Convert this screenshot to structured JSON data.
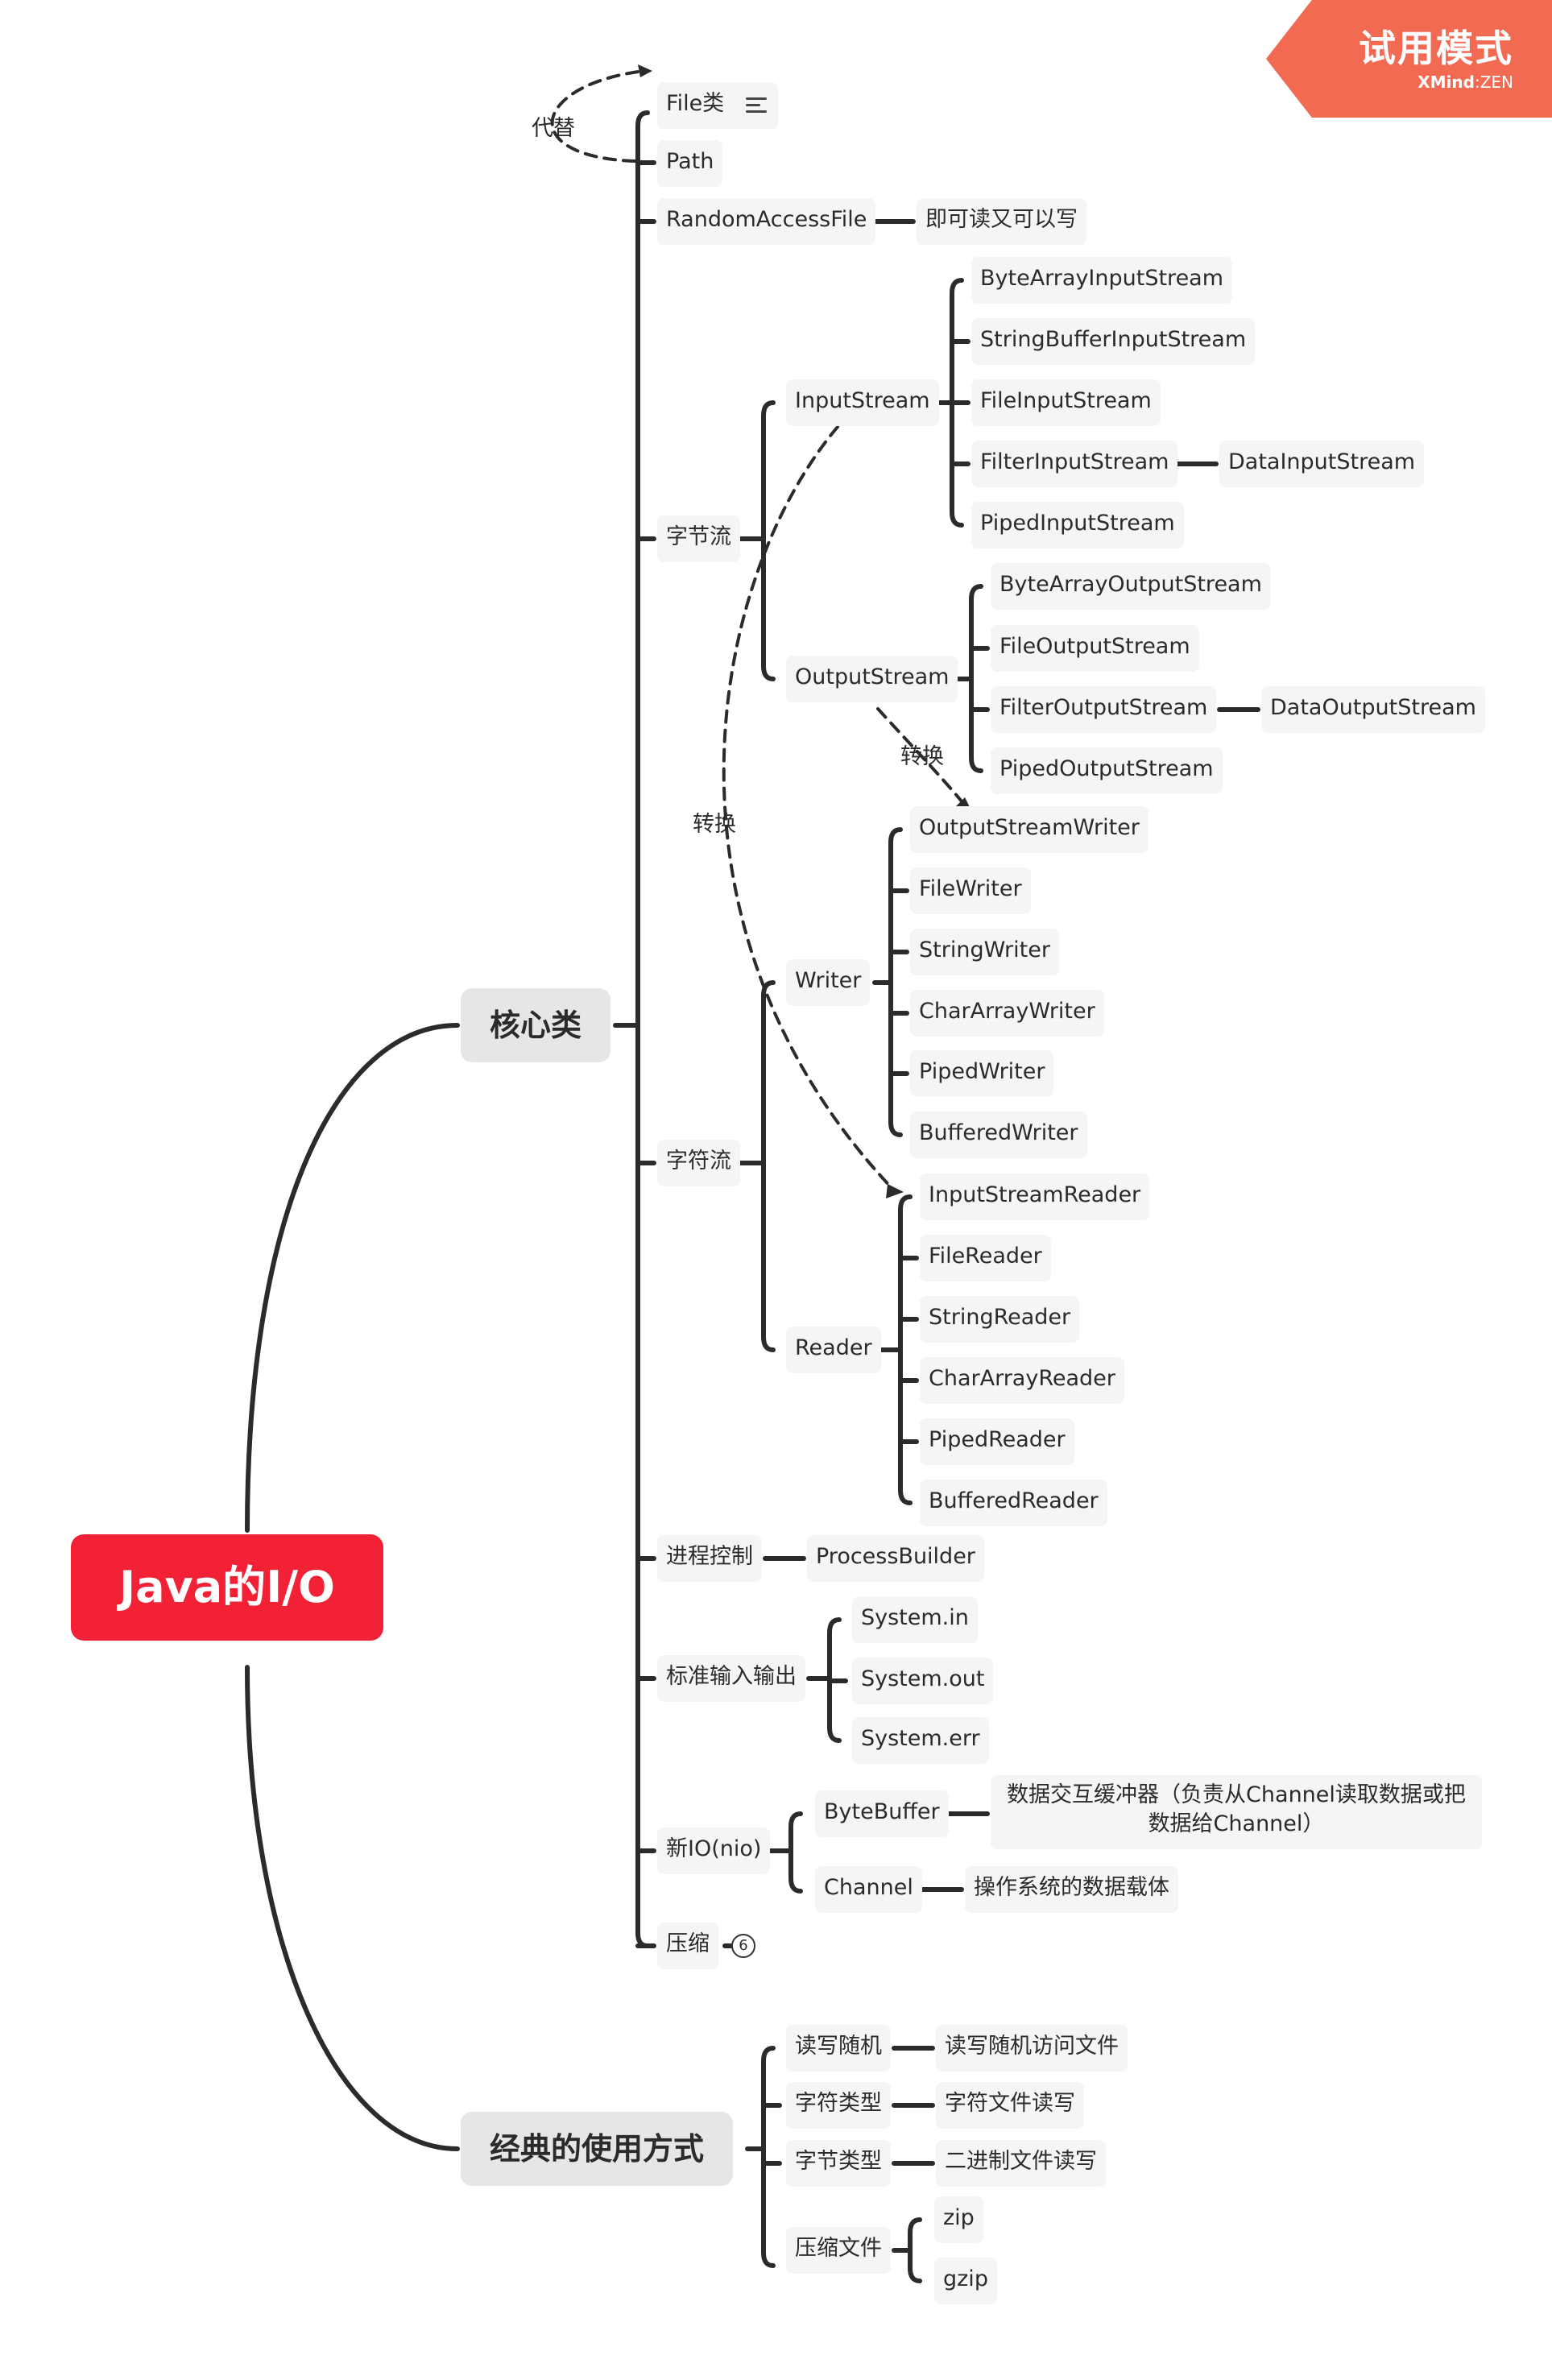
{
  "watermark": {
    "title": "试用模式",
    "brand": "XMind",
    "sep": ":",
    "edition": "ZEN"
  },
  "root": "Java的I/O",
  "core": {
    "label": "核心类",
    "file": "File类",
    "replace_label": "代替",
    "path": "Path",
    "raf": "RandomAccessFile",
    "raf_note": "即可读又可以写",
    "byte_stream": "字节流",
    "input_stream": "InputStream",
    "input_children": [
      "ByteArrayInputStream",
      "StringBufferInputStream",
      "FileInputStream",
      "FilterInputStream",
      "PipedInputStream"
    ],
    "filter_input_child": "DataInputStream",
    "output_stream": "OutputStream",
    "output_children": [
      "ByteArrayOutputStream",
      "FileOutputStream",
      "FilterOutputStream",
      "PipedOutputStream"
    ],
    "filter_output_child": "DataOutputStream",
    "convert_label_1": "转换",
    "convert_label_2": "转换",
    "char_stream": "字符流",
    "writer": "Writer",
    "writer_children": [
      "OutputStreamWriter",
      "FileWriter",
      "StringWriter",
      "CharArrayWriter",
      "PipedWriter",
      "BufferedWriter"
    ],
    "reader": "Reader",
    "reader_children": [
      "InputStreamReader",
      "FileReader",
      "StringReader",
      "CharArrayReader",
      "PipedReader",
      "BufferedReader"
    ],
    "process": "进程控制",
    "process_builder": "ProcessBuilder",
    "std_io": "标准输入输出",
    "std_children": [
      "System.in",
      "System.out",
      "System.err"
    ],
    "nio": "新IO(nio)",
    "byte_buffer": "ByteBuffer",
    "byte_buffer_note": "数据交互缓冲器（负责从Channel读取数据或把数据给Channel）",
    "channel": "Channel",
    "channel_note": "操作系统的数据载体",
    "compress": "压缩",
    "compress_count": "6"
  },
  "usage": {
    "label": "经典的使用方式",
    "rows": [
      {
        "label": "读写随机",
        "child": "读写随机访问文件"
      },
      {
        "label": "字符类型",
        "child": "字符文件读写"
      },
      {
        "label": "字节类型",
        "child": "二进制文件读写"
      }
    ],
    "zip_label": "压缩文件",
    "zip_children": [
      "zip",
      "gzip"
    ]
  },
  "colors": {
    "root": "#f22136",
    "line": "#2b2b2b",
    "watermark": "#f26a52"
  }
}
